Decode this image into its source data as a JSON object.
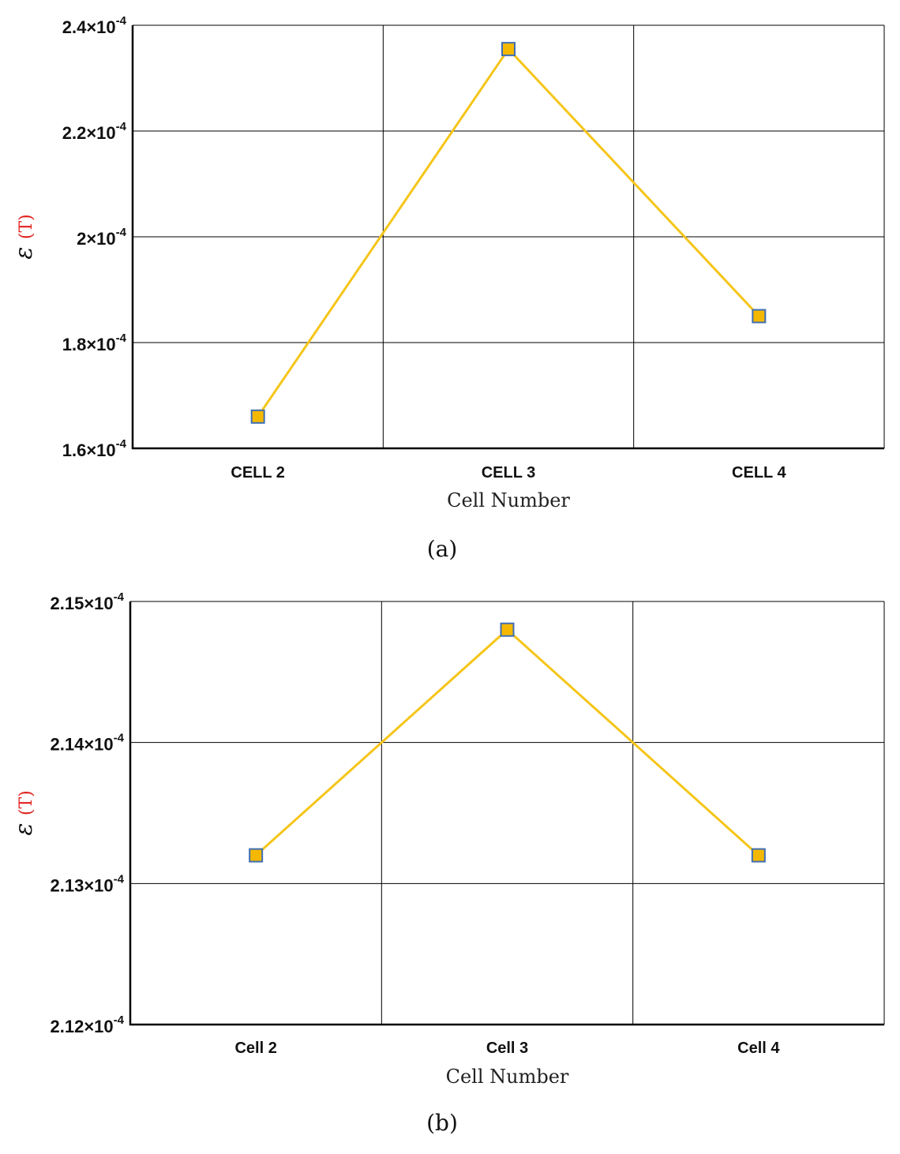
{
  "colors": {
    "line": "#F5C518",
    "marker_fill": "#F5B800",
    "marker_edge": "#3F6FB5",
    "grid": "#000000"
  },
  "chart_data": [
    {
      "type": "line",
      "panel_label": "(a)",
      "xlabel": "Cell Number",
      "ylabel_symbol": "ε",
      "ylabel_unit": "(T)",
      "categories": [
        "CELL 2",
        "CELL 3",
        "CELL 4"
      ],
      "values": [
        0.000166,
        0.0002355,
        0.000185
      ],
      "ylim": [
        0.00016,
        0.00024
      ],
      "ytick_values": [
        0.00016,
        0.00018,
        0.0002,
        0.00022,
        0.00024
      ],
      "ytick_mantissas": [
        "1.6×10",
        "1.8×10",
        "2×10",
        "2.2×10",
        "2.4×10"
      ],
      "ytick_exponent": "-4",
      "grid": true
    },
    {
      "type": "line",
      "panel_label": "(b)",
      "xlabel": "Cell Number",
      "ylabel_symbol": "ε",
      "ylabel_unit": "(T)",
      "categories": [
        "Cell 2",
        "Cell 3",
        "Cell 4"
      ],
      "values": [
        0.0002132,
        0.0002148,
        0.0002132
      ],
      "ylim": [
        0.000212,
        0.000215
      ],
      "ytick_values": [
        0.000212,
        0.000213,
        0.000214,
        0.000215
      ],
      "ytick_mantissas": [
        "2.12×10",
        "2.13×10",
        "2.14×10",
        "2.15×10"
      ],
      "ytick_exponent": "-4",
      "grid": true
    }
  ]
}
